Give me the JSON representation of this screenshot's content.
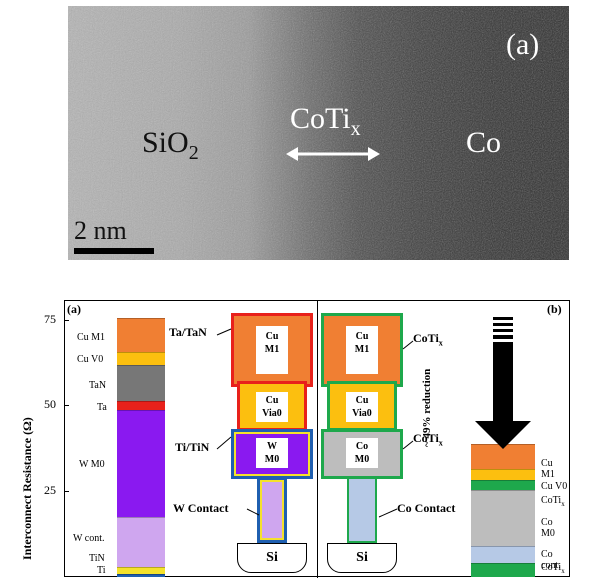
{
  "tem": {
    "panel_label": "(a)",
    "sio2": "SiO",
    "sio2_sub": "2",
    "coti": "CoTi",
    "coti_sub": "x",
    "co": "Co",
    "scale": "2 nm"
  },
  "figure": {
    "panel_a": "(a)",
    "panel_b": "(b)",
    "ylabel": "Interconnect Resistance (Ω)",
    "yticks": [
      "75",
      "50",
      "25"
    ],
    "bar_a": {
      "segments": [
        {
          "name": "Ti",
          "from": 0,
          "to": 1,
          "color": "#1f5fb0"
        },
        {
          "name": "TiN",
          "from": 1,
          "to": 3,
          "color": "#f5e22b"
        },
        {
          "name": "W cont.",
          "from": 3,
          "to": 17.5,
          "color": "#cfa6ef"
        },
        {
          "name": "W M0",
          "from": 17.5,
          "to": 49,
          "color": "#8a19f0"
        },
        {
          "name": "Ta",
          "from": 49,
          "to": 51.5,
          "color": "#e8211b"
        },
        {
          "name": "TaN",
          "from": 51.5,
          "to": 62,
          "color": "#777777"
        },
        {
          "name": "Cu V0",
          "from": 62,
          "to": 66,
          "color": "#fcbf0f"
        },
        {
          "name": "Cu M1",
          "from": 66,
          "to": 76,
          "color": "#f07f33"
        }
      ],
      "labels": [
        "Cu M1",
        "Cu V0",
        "TaN",
        "Ta",
        "W M0",
        "W cont.",
        "TiN",
        "Ti"
      ]
    },
    "bar_b": {
      "segments": [
        {
          "name": "CoTix",
          "from": 0,
          "to": 4,
          "color": "#1ea84c"
        },
        {
          "name": "Co cont.",
          "from": 4,
          "to": 9,
          "color": "#b6c9e6"
        },
        {
          "name": "Co M0",
          "from": 9,
          "to": 25.5,
          "color": "#bdbdbd"
        },
        {
          "name": "CoTix",
          "from": 25.5,
          "to": 28.5,
          "color": "#1ea84c"
        },
        {
          "name": "Cu V0",
          "from": 28.5,
          "to": 31.5,
          "color": "#fcbf0f"
        },
        {
          "name": "Cu M1",
          "from": 31.5,
          "to": 39,
          "color": "#f07f33"
        }
      ],
      "labels": {
        "cum1": "Cu M1",
        "cuv0": "Cu V0",
        "cotix": "CoTi",
        "cotix_sub": "x",
        "com0": "Co M0",
        "cocont": "Co cont.",
        "cotix2": "CoTi",
        "cotix2_sub": "x"
      }
    },
    "reduction": "~ 49% reduction",
    "stack_left": {
      "top": "Cu\nM1",
      "via": "Cu\nVia0",
      "m0": "W\nM0",
      "si": "Si",
      "ann_taN": "Ta/TaN",
      "ann_tiN": "Ti/TiN",
      "ann_contact": "W Contact"
    },
    "stack_right": {
      "top": "Cu\nM1",
      "via": "Cu\nVia0",
      "m0": "Co\nM0",
      "si": "Si",
      "ann_coti1": "CoTi",
      "ann_coti1_sub": "x",
      "ann_coti2": "CoTi",
      "ann_coti2_sub": "x",
      "ann_contact": "Co Contact"
    }
  }
}
